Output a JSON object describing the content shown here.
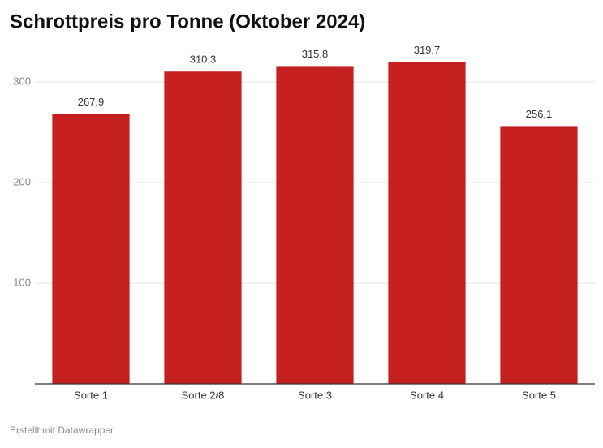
{
  "chart_data": {
    "type": "bar",
    "title": "Schrottpreis pro Tonne (Oktober 2024)",
    "categories": [
      "Sorte 1",
      "Sorte 2/8",
      "Sorte 3",
      "Sorte 4",
      "Sorte 5"
    ],
    "values": [
      267.9,
      310.3,
      315.8,
      319.7,
      256.1
    ],
    "value_labels": [
      "267,9",
      "310,3",
      "315,8",
      "319,7",
      "256,1"
    ],
    "color": "#c61f1f",
    "ylim": [
      0,
      350
    ],
    "yticks": [
      100,
      200,
      300
    ],
    "grid": true,
    "footer": "Erstellt mit Datawrapper"
  }
}
